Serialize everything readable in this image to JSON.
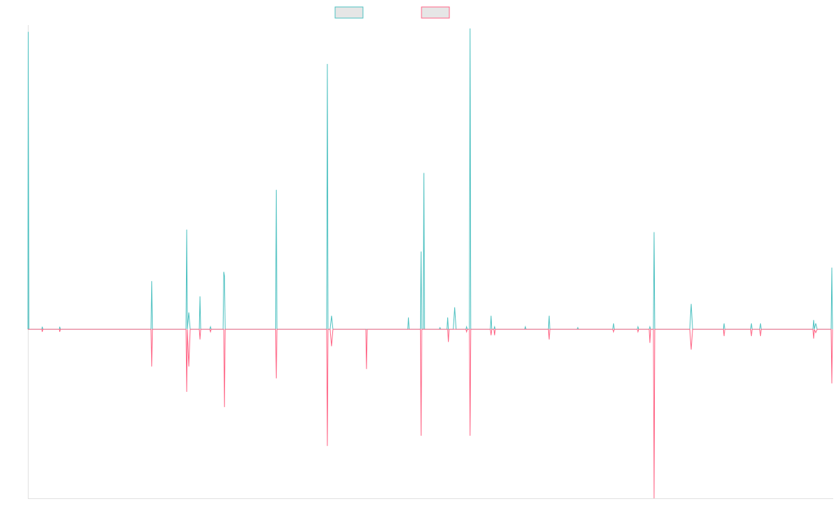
{
  "chart_data": {
    "type": "line",
    "title": "",
    "xlabel": "",
    "ylabel": "",
    "grid": false,
    "legend_position": "top-center",
    "ylim": [
      -100,
      180
    ],
    "xlim": [
      0,
      1150
    ],
    "series": [
      {
        "color": "#4bc0c0",
        "points": [
          [
            0,
            0
          ],
          [
            0.5,
            176
          ],
          [
            1.5,
            0
          ],
          [
            20,
            0
          ],
          [
            20.5,
            1.5
          ],
          [
            21.5,
            0
          ],
          [
            45,
            0
          ],
          [
            45.5,
            1.5
          ],
          [
            46.5,
            0
          ],
          [
            176,
            0
          ],
          [
            177,
            28.5
          ],
          [
            178,
            0
          ],
          [
            226,
            0
          ],
          [
            227,
            59
          ],
          [
            228,
            0
          ],
          [
            230,
            10
          ],
          [
            232,
            0
          ],
          [
            245,
            0
          ],
          [
            246,
            19.5
          ],
          [
            247,
            0
          ],
          [
            260,
            0
          ],
          [
            261,
            1.5
          ],
          [
            262,
            0
          ],
          [
            279,
            0
          ],
          [
            280,
            34
          ],
          [
            281,
            31.5
          ],
          [
            282,
            0
          ],
          [
            354,
            0
          ],
          [
            355,
            82.5
          ],
          [
            356,
            0
          ],
          [
            427,
            0
          ],
          [
            428,
            157
          ],
          [
            429,
            0
          ],
          [
            432,
            0
          ],
          [
            434,
            8
          ],
          [
            436,
            0
          ],
          [
            543,
            0
          ],
          [
            544,
            7
          ],
          [
            545,
            0
          ],
          [
            561,
            0
          ],
          [
            562,
            46
          ],
          [
            563,
            0
          ],
          [
            565,
            0
          ],
          [
            566,
            92.5
          ],
          [
            567,
            0
          ],
          [
            588,
            0
          ],
          [
            589,
            1
          ],
          [
            590,
            0
          ],
          [
            599,
            0
          ],
          [
            600,
            7
          ],
          [
            601,
            0
          ],
          [
            608,
            0
          ],
          [
            610,
            13
          ],
          [
            612,
            0
          ],
          [
            626,
            0
          ],
          [
            627,
            1.5
          ],
          [
            628,
            0
          ],
          [
            631,
            0
          ],
          [
            632,
            178
          ],
          [
            633,
            0
          ],
          [
            661,
            0
          ],
          [
            662,
            8
          ],
          [
            663,
            0
          ],
          [
            666,
            0
          ],
          [
            667,
            1.5
          ],
          [
            668,
            0
          ],
          [
            710,
            0
          ],
          [
            711,
            1.5
          ],
          [
            712,
            0
          ],
          [
            744,
            0
          ],
          [
            745,
            8
          ],
          [
            746,
            0
          ],
          [
            785,
            0
          ],
          [
            786,
            1
          ],
          [
            787,
            0
          ],
          [
            836,
            0
          ],
          [
            837,
            3.5
          ],
          [
            838,
            0
          ],
          [
            871,
            0
          ],
          [
            872,
            1.5
          ],
          [
            873,
            0
          ],
          [
            888,
            0
          ],
          [
            889,
            1.5
          ],
          [
            890,
            0
          ],
          [
            894,
            0
          ],
          [
            895,
            57.5
          ],
          [
            896,
            0
          ],
          [
            946,
            0
          ],
          [
            948,
            15
          ],
          [
            950,
            0
          ],
          [
            994,
            0
          ],
          [
            995,
            3.5
          ],
          [
            996,
            0
          ],
          [
            1033,
            0
          ],
          [
            1034,
            3.5
          ],
          [
            1035,
            0
          ],
          [
            1046,
            0
          ],
          [
            1047,
            3.5
          ],
          [
            1048,
            0
          ],
          [
            1122,
            0
          ],
          [
            1123,
            5.5
          ],
          [
            1124,
            0
          ],
          [
            1126,
            3.5
          ],
          [
            1128,
            0
          ],
          [
            1148,
            0
          ],
          [
            1149,
            36.5
          ],
          [
            1150,
            0
          ]
        ]
      },
      {
        "color": "#ff6384",
        "points": [
          [
            0,
            0
          ],
          [
            20,
            0
          ],
          [
            20.5,
            -1.5
          ],
          [
            21.5,
            0
          ],
          [
            45,
            0
          ],
          [
            45.5,
            -1.5
          ],
          [
            46.5,
            0
          ],
          [
            176,
            0
          ],
          [
            177,
            -22
          ],
          [
            178,
            0
          ],
          [
            226,
            0
          ],
          [
            227,
            -37
          ],
          [
            228,
            0
          ],
          [
            230,
            -22
          ],
          [
            232,
            0
          ],
          [
            245,
            0
          ],
          [
            246,
            -6
          ],
          [
            247,
            0
          ],
          [
            260,
            0
          ],
          [
            261,
            -1.5
          ],
          [
            262,
            0
          ],
          [
            280,
            0
          ],
          [
            281,
            -46
          ],
          [
            282,
            0
          ],
          [
            354,
            0
          ],
          [
            355,
            -29
          ],
          [
            356,
            0
          ],
          [
            427,
            0
          ],
          [
            428,
            -69
          ],
          [
            429,
            0
          ],
          [
            432,
            0
          ],
          [
            434,
            -10
          ],
          [
            436,
            0
          ],
          [
            483,
            0
          ],
          [
            484,
            -23.5
          ],
          [
            485,
            0
          ],
          [
            561,
            0
          ],
          [
            562,
            -63
          ],
          [
            563,
            0
          ],
          [
            600,
            0
          ],
          [
            601,
            -7.5
          ],
          [
            602,
            0
          ],
          [
            626,
            0
          ],
          [
            627,
            -1.5
          ],
          [
            628,
            0
          ],
          [
            631,
            0
          ],
          [
            632,
            -63
          ],
          [
            633,
            0
          ],
          [
            661,
            0
          ],
          [
            662,
            -3.5
          ],
          [
            663,
            0
          ],
          [
            666,
            0
          ],
          [
            667,
            -3.5
          ],
          [
            668,
            0
          ],
          [
            744,
            0
          ],
          [
            745,
            -6
          ],
          [
            746,
            0
          ],
          [
            836,
            0
          ],
          [
            837,
            -1.5
          ],
          [
            838,
            0
          ],
          [
            871,
            0
          ],
          [
            872,
            -1.5
          ],
          [
            873,
            0
          ],
          [
            888,
            0
          ],
          [
            889,
            -8
          ],
          [
            890,
            0
          ],
          [
            894,
            0
          ],
          [
            895,
            -100
          ],
          [
            896,
            0
          ],
          [
            946,
            0
          ],
          [
            948,
            -12
          ],
          [
            950,
            0
          ],
          [
            994,
            0
          ],
          [
            995,
            -4
          ],
          [
            996,
            0
          ],
          [
            1033,
            0
          ],
          [
            1034,
            -4
          ],
          [
            1035,
            0
          ],
          [
            1046,
            0
          ],
          [
            1047,
            -4
          ],
          [
            1048,
            0
          ],
          [
            1122,
            0
          ],
          [
            1123,
            -5.5
          ],
          [
            1124,
            0
          ],
          [
            1126,
            -2
          ],
          [
            1128,
            0
          ],
          [
            1148,
            0
          ],
          [
            1149,
            -32
          ],
          [
            1150,
            0
          ]
        ]
      }
    ]
  }
}
